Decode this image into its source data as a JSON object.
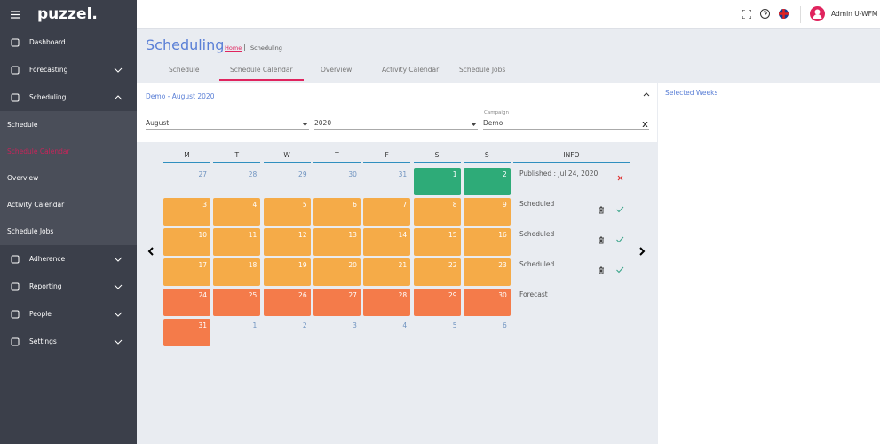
{
  "sidebar": {
    "logo": "puzzel.",
    "menu": [
      {
        "label": "Dashboard",
        "expandable": false
      },
      {
        "label": "Forecasting",
        "expandable": true
      },
      {
        "label": "Scheduling",
        "expandable": true,
        "open": true,
        "active_child": 1,
        "children": [
          "Schedule",
          "Schedule Calendar",
          "Overview",
          "Activity Calendar",
          "Schedule Jobs"
        ]
      },
      {
        "label": "Adherence",
        "expandable": true
      },
      {
        "label": "Reporting",
        "expandable": true
      },
      {
        "label": "People",
        "expandable": true
      },
      {
        "label": "Settings",
        "expandable": true
      }
    ]
  },
  "topbar": {
    "user": "Admin U-WFM"
  },
  "header": {
    "title": "Scheduling",
    "breadcrumb": [
      "Home",
      "Scheduling"
    ]
  },
  "tabs": {
    "items": [
      "Schedule",
      "Schedule Calendar",
      "Overview",
      "Activity Calendar",
      "Schedule Jobs"
    ],
    "active": 1
  },
  "panel": {
    "title": "Demo - August 2020",
    "month": "August",
    "year": "2020",
    "campaign_label": "Campaign",
    "campaign": "Demo"
  },
  "calendar": {
    "weekdays": [
      "M",
      "T",
      "W",
      "T",
      "F",
      "S",
      "S"
    ],
    "info_header": "INFO",
    "weeks": [
      {
        "days": [
          27,
          28,
          29,
          30,
          31,
          1,
          2
        ],
        "colors": [
          null,
          null,
          null,
          null,
          null,
          "#2eab78",
          "#2eab78"
        ],
        "info": "Published : Jul 24, 2020",
        "icons": [
          "close"
        ]
      },
      {
        "days": [
          3,
          4,
          5,
          6,
          7,
          8,
          9
        ],
        "colors": [
          "#f5ab48",
          "#f5ab48",
          "#f5ab48",
          "#f5ab48",
          "#f5ab48",
          "#f5ab48",
          "#f5ab48"
        ],
        "info": "Scheduled",
        "icons": [
          "delete",
          "approve"
        ]
      },
      {
        "days": [
          10,
          11,
          12,
          13,
          14,
          15,
          16
        ],
        "colors": [
          "#f5ab48",
          "#f5ab48",
          "#f5ab48",
          "#f5ab48",
          "#f5ab48",
          "#f5ab48",
          "#f5ab48"
        ],
        "info": "Scheduled",
        "icons": [
          "delete",
          "approve"
        ]
      },
      {
        "days": [
          17,
          18,
          19,
          20,
          21,
          22,
          23
        ],
        "colors": [
          "#f5ab48",
          "#f5ab48",
          "#f5ab48",
          "#f5ab48",
          "#f5ab48",
          "#f5ab48",
          "#f5ab48"
        ],
        "info": "Scheduled",
        "icons": [
          "delete",
          "approve"
        ]
      },
      {
        "days": [
          24,
          25,
          26,
          27,
          28,
          29,
          30
        ],
        "colors": [
          "#f47b4a",
          "#f47b4a",
          "#f47b4a",
          "#f47b4a",
          "#f47b4a",
          "#f47b4a",
          "#f47b4a"
        ],
        "info": "Forecast",
        "icons": []
      },
      {
        "days": [
          31,
          1,
          2,
          3,
          4,
          5,
          6
        ],
        "colors": [
          "#f47b4a",
          null,
          null,
          null,
          null,
          null,
          null
        ],
        "icons": []
      }
    ]
  },
  "selected_weeks": "Selected Weeks"
}
